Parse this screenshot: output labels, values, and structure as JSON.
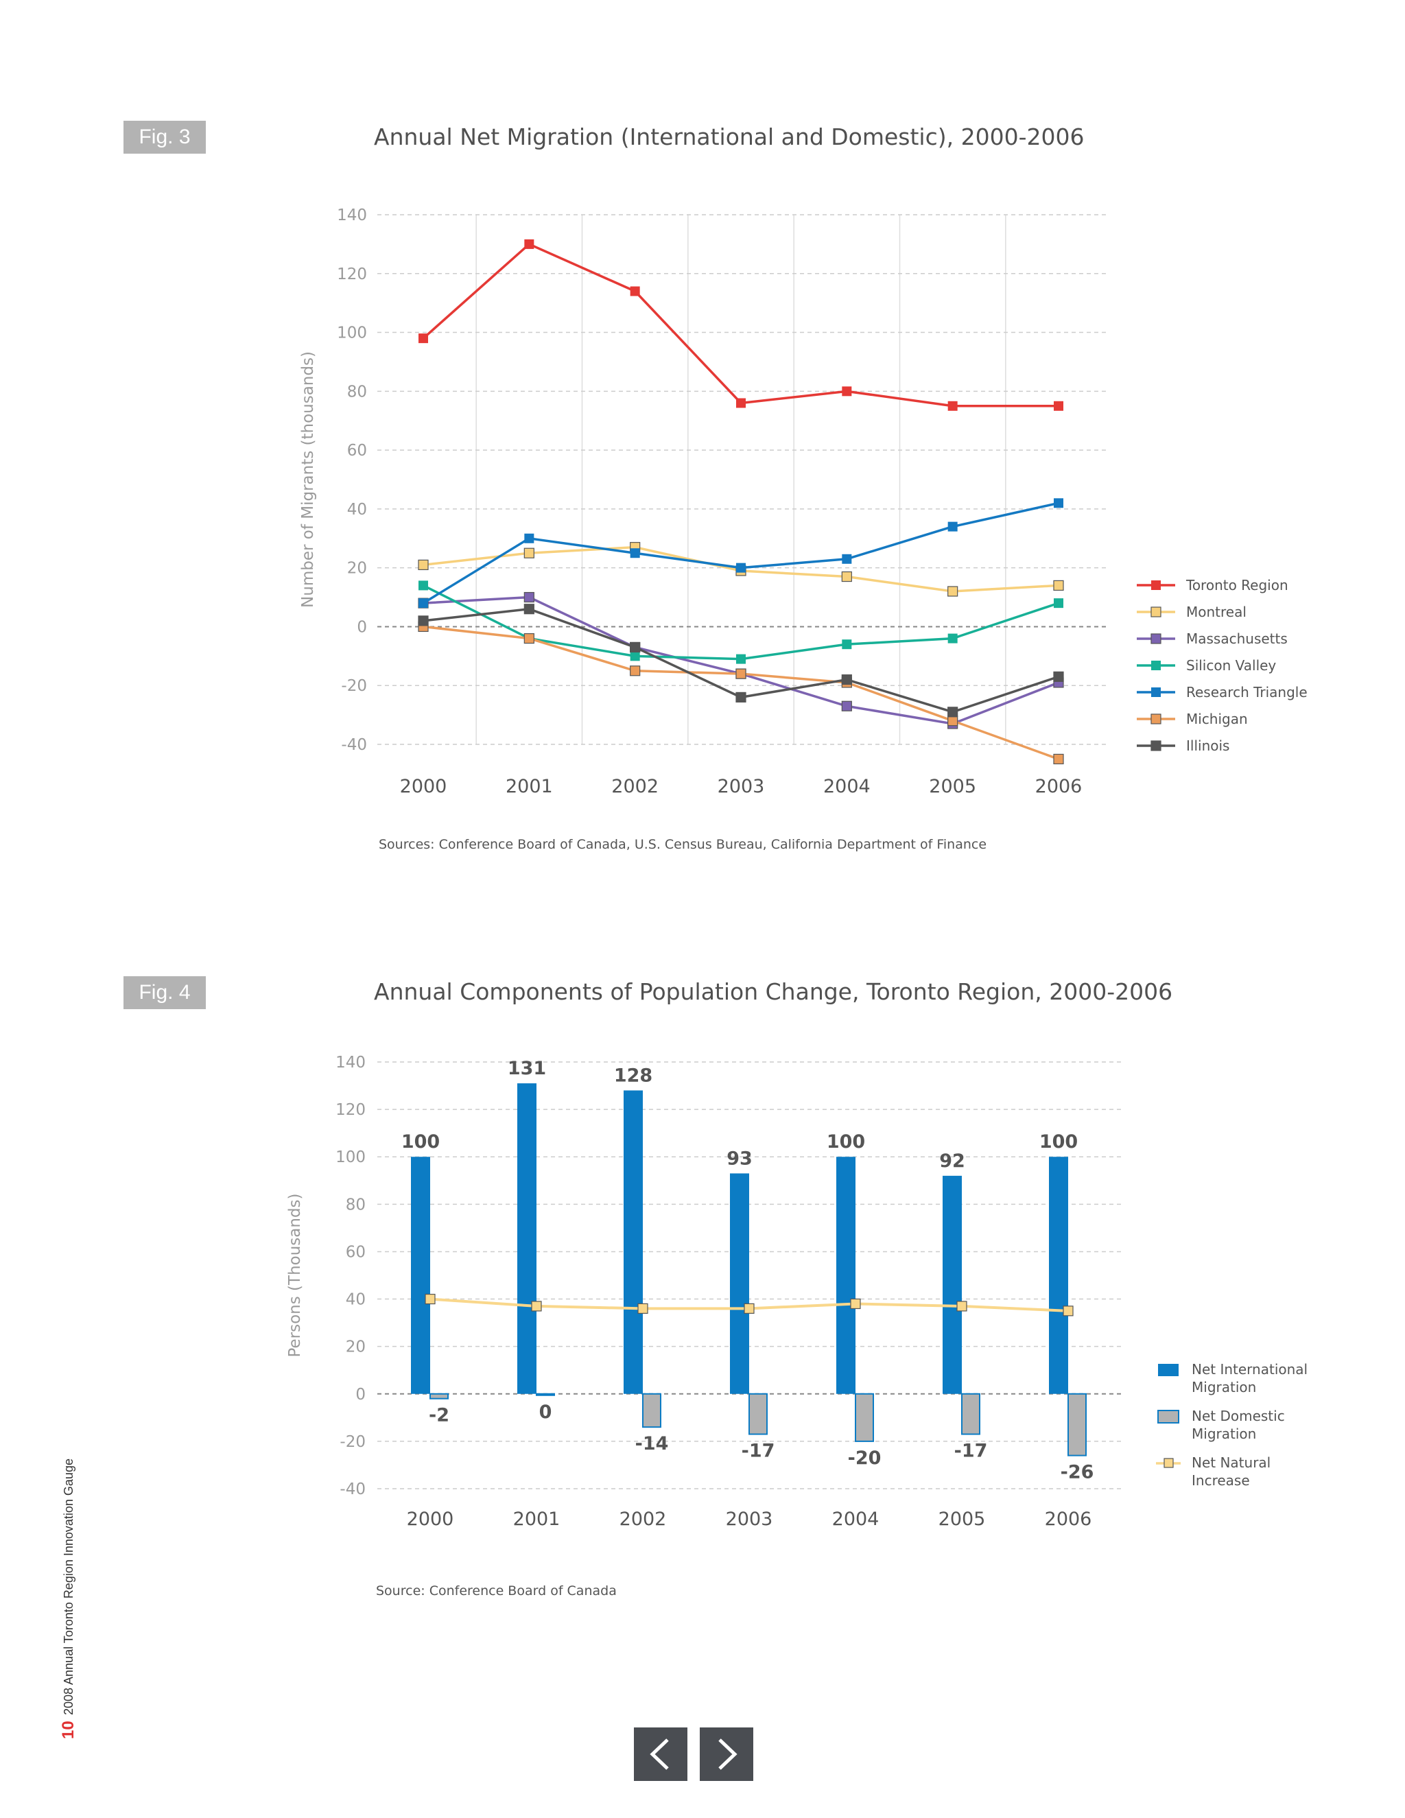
{
  "colors": {
    "toronto": "#e53935",
    "montreal": "#f7d07c",
    "massachusetts": "#7c63b0",
    "silicon_valley": "#17b096",
    "research_triangle": "#1479c2",
    "michigan": "#eb9c5a",
    "illinois": "#555555",
    "bar_international": "#0c7cc4",
    "bar_domestic": "#b2b2b2",
    "line_natural": "#f9d78b",
    "grid": "#cccccc",
    "axis_text": "#9a9a9a"
  },
  "fig3": {
    "badge": "Fig. 3",
    "title": "Annual Net Migration (International and Domestic), 2000-2006",
    "source": "Sources: Conference Board of Canada, U.S. Census Bureau, California Department of Finance"
  },
  "fig4": {
    "badge": "Fig. 4",
    "title": "Annual Components of Population Change, Toronto Region, 2000-2006",
    "source": "Source: Conference Board of Canada"
  },
  "chart_data": [
    {
      "type": "line",
      "title": "Annual Net Migration (International and Domestic), 2000-2006",
      "xlabel": "",
      "ylabel": "Number of Migrants (thousands)",
      "x": [
        "2000",
        "2001",
        "2002",
        "2003",
        "2004",
        "2005",
        "2006"
      ],
      "ylim": [
        -40,
        140
      ],
      "yticks": [
        140,
        120,
        100,
        80,
        60,
        40,
        20,
        0,
        -20,
        -40
      ],
      "grid": true,
      "legend_position": "right",
      "series": [
        {
          "name": "Toronto Region",
          "color_key": "toronto",
          "values": [
            98,
            130,
            114,
            76,
            80,
            75,
            75
          ]
        },
        {
          "name": "Montreal",
          "color_key": "montreal",
          "values": [
            21,
            25,
            27,
            19,
            17,
            12,
            14
          ]
        },
        {
          "name": "Massachusetts",
          "color_key": "massachusetts",
          "values": [
            8,
            10,
            -7,
            -16,
            -27,
            -33,
            -19
          ]
        },
        {
          "name": "Silicon Valley",
          "color_key": "silicon_valley",
          "values": [
            14,
            -4,
            -10,
            -11,
            -6,
            -4,
            8
          ]
        },
        {
          "name": "Research Triangle",
          "color_key": "research_triangle",
          "values": [
            8,
            30,
            25,
            20,
            23,
            34,
            42
          ]
        },
        {
          "name": "Michigan",
          "color_key": "michigan",
          "values": [
            0,
            -4,
            -15,
            -16,
            -19,
            -32,
            -45
          ]
        },
        {
          "name": "Illinois",
          "color_key": "illinois",
          "values": [
            2,
            6,
            -7,
            -24,
            -18,
            -29,
            -17
          ]
        }
      ]
    },
    {
      "type": "bar",
      "title": "Annual Components of Population Change, Toronto Region, 2000-2006",
      "xlabel": "",
      "ylabel": "Persons (Thousands)",
      "categories": [
        "2000",
        "2001",
        "2002",
        "2003",
        "2004",
        "2005",
        "2006"
      ],
      "ylim": [
        -40,
        140
      ],
      "yticks": [
        140,
        120,
        100,
        80,
        60,
        40,
        20,
        0,
        -20,
        -40
      ],
      "grid": true,
      "legend_position": "right",
      "series": [
        {
          "name": "Net International Migration",
          "color_key": "bar_international",
          "kind": "bar",
          "values": [
            100,
            131,
            128,
            93,
            100,
            92,
            100
          ],
          "labels": [
            "100",
            "131",
            "128",
            "93",
            "100",
            "92",
            "100"
          ]
        },
        {
          "name": "Net Domestic Migration",
          "color_key": "bar_domestic",
          "kind": "bar",
          "values": [
            -2,
            0,
            -14,
            -17,
            -20,
            -17,
            -26
          ],
          "labels": [
            "-2",
            "0",
            "-14",
            "-17",
            "-20",
            "-17",
            "-26"
          ]
        },
        {
          "name": "Net Natural Increase",
          "color_key": "line_natural",
          "kind": "line",
          "values": [
            40,
            37,
            36,
            36,
            38,
            37,
            35
          ]
        }
      ]
    }
  ],
  "legend4_lines": [
    [
      "Net International",
      "Migration"
    ],
    [
      "Net Domestic",
      "Migration"
    ],
    [
      "Net Natural",
      "Increase"
    ]
  ],
  "footer": {
    "side_note": "2008 Annual Toronto Region Innovation Gauge",
    "page_number": "10"
  },
  "nav": {
    "prev_icon": "chevron-left-icon",
    "next_icon": "chevron-right-icon"
  }
}
